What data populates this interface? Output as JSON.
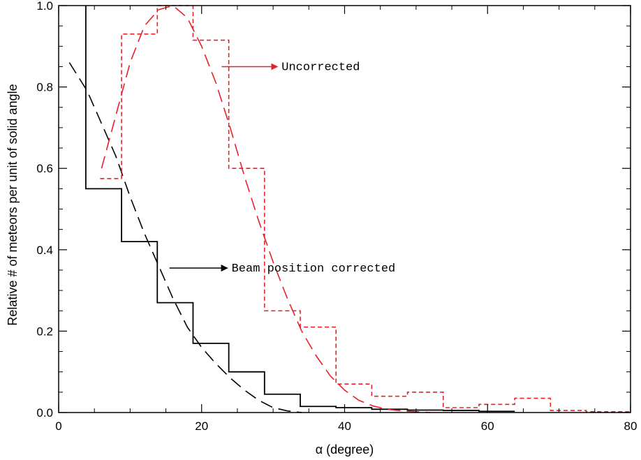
{
  "chart_data": {
    "type": "line",
    "title": "",
    "xlabel": "α (degree)",
    "ylabel": "Relative # of meteors per unit of solid angle",
    "xlim": [
      0,
      80
    ],
    "ylim": [
      0,
      1.0
    ],
    "xticks": [
      0,
      20,
      40,
      60,
      80
    ],
    "xtick_labels": [
      "0",
      "20",
      "40",
      "60",
      "80"
    ],
    "yticks": [
      0.0,
      0.2,
      0.4,
      0.6,
      0.8,
      1.0
    ],
    "ytick_labels": [
      "0.0",
      "0.2",
      "0.4",
      "0.6",
      "0.8",
      "1.0"
    ],
    "grid": false,
    "series": [
      {
        "style": "histogram-solid",
        "color": "#000000",
        "bin_edges": [
          3.8,
          8.8,
          13.8,
          18.8,
          23.8,
          28.8,
          33.8,
          38.8,
          43.8,
          48.8,
          53.8,
          58.8,
          63.8
        ],
        "values": [
          0.55,
          0.42,
          0.27,
          0.17,
          0.1,
          0.045,
          0.015,
          0.012,
          0.008,
          0.006,
          0.005,
          0.003
        ],
        "first_bin_top": 1.0
      },
      {
        "style": "fit-dashed",
        "color": "#000000",
        "x": [
          1.5,
          4,
          6,
          8,
          10,
          12,
          14,
          16,
          18,
          20,
          22,
          24,
          26,
          28,
          30,
          32,
          34
        ],
        "y": [
          0.86,
          0.79,
          0.71,
          0.63,
          0.53,
          0.44,
          0.36,
          0.28,
          0.21,
          0.16,
          0.12,
          0.085,
          0.055,
          0.03,
          0.012,
          0.004,
          0.0
        ]
      },
      {
        "style": "histogram-dashed",
        "color": "#e8202a",
        "bin_edges": [
          5.8,
          8.8,
          13.8,
          18.8,
          23.8,
          28.8,
          33.8,
          38.8,
          43.8,
          48.8,
          53.8,
          58.8,
          63.8,
          68.8,
          73.8,
          80
        ],
        "values": [
          0.575,
          0.93,
          1.0,
          0.915,
          0.6,
          0.25,
          0.21,
          0.07,
          0.04,
          0.05,
          0.012,
          0.02,
          0.035,
          0.005,
          0.002
        ]
      },
      {
        "style": "fit-dashed",
        "color": "#e8202a",
        "x": [
          6,
          8,
          10,
          12,
          14,
          16,
          18,
          20,
          22,
          24,
          26,
          28,
          30,
          32,
          34,
          36,
          38,
          40,
          42,
          44,
          46,
          48,
          50,
          52
        ],
        "y": [
          0.6,
          0.73,
          0.86,
          0.95,
          0.99,
          1.0,
          0.97,
          0.9,
          0.81,
          0.7,
          0.58,
          0.47,
          0.37,
          0.28,
          0.2,
          0.14,
          0.09,
          0.055,
          0.03,
          0.016,
          0.008,
          0.004,
          0.002,
          0.0
        ]
      }
    ],
    "annotations": [
      {
        "text": "Uncorrected",
        "color": "#e8202a",
        "arrow_from": [
          22.8,
          0.85
        ],
        "arrow_to": [
          30.6,
          0.85
        ]
      },
      {
        "text": "Beam position corrected",
        "color": "#000000",
        "arrow_from": [
          15.5,
          0.355
        ],
        "arrow_to": [
          23.6,
          0.355
        ]
      }
    ]
  }
}
